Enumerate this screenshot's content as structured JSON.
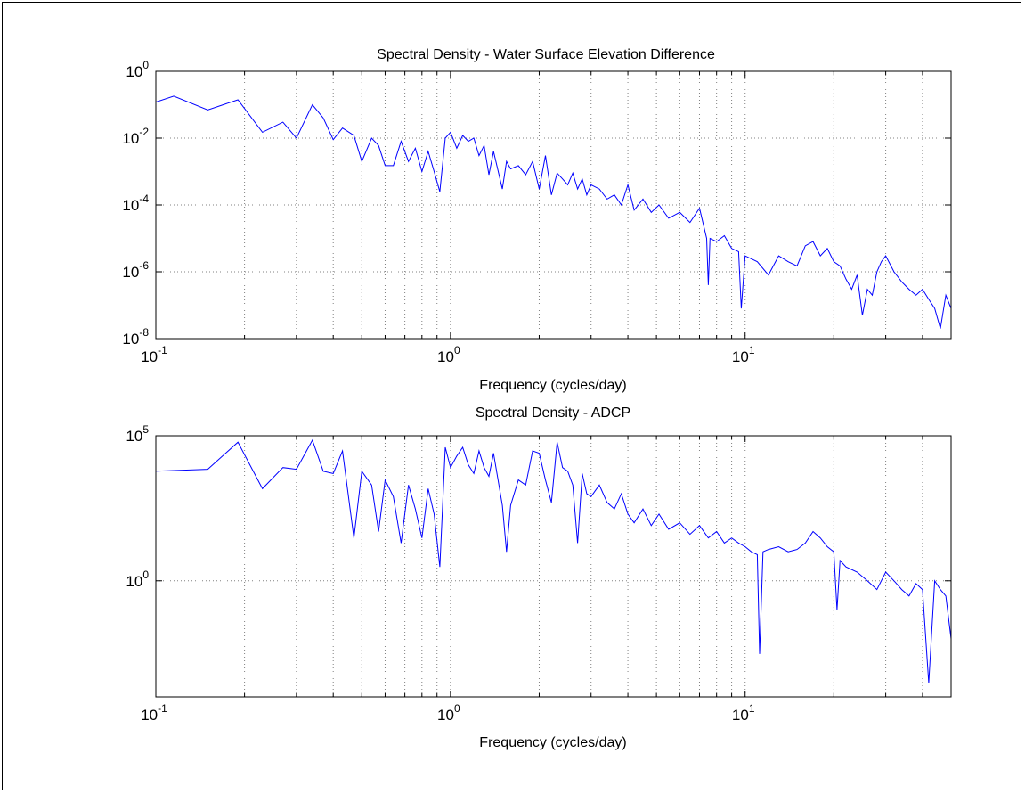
{
  "chart_data": [
    {
      "type": "line",
      "title": "Spectral Density - Water Surface Elevation Difference",
      "xlabel": "Frequency (cycles/day)",
      "ylabel": "",
      "x_scale": "log",
      "y_scale": "log",
      "xlim": [
        0.1,
        50
      ],
      "ylim": [
        1e-08,
        1
      ],
      "grid": true,
      "x_ticks": [
        {
          "value": 0.1,
          "base": "10",
          "exp": "-1"
        },
        {
          "value": 1,
          "base": "10",
          "exp": "0"
        },
        {
          "value": 10,
          "base": "10",
          "exp": "1"
        }
      ],
      "y_ticks": [
        {
          "value": 1,
          "base": "10",
          "exp": "0"
        },
        {
          "value": 0.01,
          "base": "10",
          "exp": "-2"
        },
        {
          "value": 0.0001,
          "base": "10",
          "exp": "-4"
        },
        {
          "value": 1e-06,
          "base": "10",
          "exp": "-6"
        },
        {
          "value": 1e-08,
          "base": "10",
          "exp": "-8"
        }
      ],
      "series": [
        {
          "color": "#0000ff",
          "x": [
            0.1,
            0.115,
            0.15,
            0.19,
            0.23,
            0.27,
            0.3,
            0.34,
            0.37,
            0.4,
            0.43,
            0.47,
            0.5,
            0.54,
            0.57,
            0.6,
            0.64,
            0.68,
            0.72,
            0.76,
            0.8,
            0.84,
            0.88,
            0.92,
            0.96,
            1.0,
            1.05,
            1.1,
            1.15,
            1.2,
            1.25,
            1.3,
            1.35,
            1.4,
            1.5,
            1.55,
            1.6,
            1.7,
            1.8,
            1.9,
            2.0,
            2.1,
            2.2,
            2.3,
            2.4,
            2.5,
            2.6,
            2.7,
            2.8,
            2.9,
            3.0,
            3.2,
            3.4,
            3.6,
            3.8,
            4.0,
            4.2,
            4.5,
            4.8,
            5.1,
            5.5,
            6.0,
            6.5,
            7.0,
            7.4,
            7.5,
            7.6,
            8.0,
            8.5,
            9.0,
            9.5,
            9.7,
            10,
            11,
            12,
            13,
            14,
            15,
            16,
            17,
            18,
            19,
            20,
            21,
            22,
            23,
            24,
            25,
            26,
            27,
            28,
            29,
            30,
            32,
            34,
            36,
            38,
            40,
            42,
            44,
            46,
            48,
            50
          ],
          "y": [
            0.12,
            0.18,
            0.07,
            0.14,
            0.015,
            0.03,
            0.01,
            0.1,
            0.04,
            0.009,
            0.02,
            0.012,
            0.002,
            0.01,
            0.006,
            0.0015,
            0.0015,
            0.008,
            0.002,
            0.005,
            0.001,
            0.004,
            0.001,
            0.00025,
            0.01,
            0.015,
            0.005,
            0.012,
            0.008,
            0.01,
            0.003,
            0.006,
            0.0008,
            0.004,
            0.0003,
            0.002,
            0.0012,
            0.0015,
            0.0008,
            0.002,
            0.0003,
            0.003,
            0.0002,
            0.0009,
            0.0006,
            0.0004,
            0.0009,
            0.0003,
            0.0006,
            0.0002,
            0.0004,
            0.0003,
            0.00015,
            0.0002,
            0.0001,
            0.0004,
            7e-05,
            0.00015,
            6e-05,
            0.0001,
            4e-05,
            6e-05,
            3e-05,
            8e-05,
            1e-05,
            4e-07,
            1e-05,
            8e-06,
            1.2e-05,
            5e-06,
            4e-06,
            8e-08,
            3e-06,
            2e-06,
            8e-07,
            3e-06,
            2e-06,
            1.5e-06,
            6e-06,
            8e-06,
            3e-06,
            5e-06,
            2e-06,
            1.5e-06,
            6e-07,
            3e-07,
            8e-07,
            5e-08,
            3e-07,
            2e-07,
            1e-06,
            2e-06,
            3e-06,
            1e-06,
            5e-07,
            3e-07,
            2e-07,
            3e-07,
            1.5e-07,
            8e-08,
            2e-08,
            2e-07,
            8e-08
          ]
        }
      ]
    },
    {
      "type": "line",
      "title": "Spectral Density - ADCP",
      "xlabel": "Frequency (cycles/day)",
      "ylabel": "",
      "x_scale": "log",
      "y_scale": "log",
      "xlim": [
        0.1,
        50
      ],
      "ylim": [
        0.0001,
        100000.0
      ],
      "grid": true,
      "x_ticks": [
        {
          "value": 0.1,
          "base": "10",
          "exp": "-1"
        },
        {
          "value": 1,
          "base": "10",
          "exp": "0"
        },
        {
          "value": 10,
          "base": "10",
          "exp": "1"
        }
      ],
      "y_ticks": [
        {
          "value": 100000,
          "base": "10",
          "exp": "5"
        },
        {
          "value": 1,
          "base": "10",
          "exp": "0"
        }
      ],
      "series": [
        {
          "color": "#0000ff",
          "x": [
            0.1,
            0.15,
            0.19,
            0.23,
            0.27,
            0.3,
            0.34,
            0.37,
            0.4,
            0.43,
            0.47,
            0.5,
            0.54,
            0.57,
            0.6,
            0.64,
            0.68,
            0.72,
            0.76,
            0.8,
            0.84,
            0.88,
            0.92,
            0.96,
            1.0,
            1.05,
            1.1,
            1.15,
            1.2,
            1.25,
            1.3,
            1.35,
            1.4,
            1.5,
            1.55,
            1.6,
            1.7,
            1.8,
            1.9,
            2.0,
            2.1,
            2.2,
            2.3,
            2.4,
            2.5,
            2.6,
            2.7,
            2.8,
            2.9,
            3.0,
            3.2,
            3.4,
            3.6,
            3.8,
            4.0,
            4.2,
            4.5,
            4.8,
            5.1,
            5.5,
            6.0,
            6.5,
            7.0,
            7.5,
            8.0,
            8.5,
            9.0,
            9.5,
            10,
            10.5,
            11,
            11.2,
            11.5,
            12,
            13,
            14,
            15,
            16,
            17,
            18,
            19,
            20,
            20.5,
            21,
            22,
            24,
            26,
            28,
            30,
            32,
            34,
            36,
            38,
            40,
            42,
            44,
            46,
            48,
            50
          ],
          "y": [
            6000,
            7000,
            60000,
            1500,
            8000,
            7000,
            70000,
            6000,
            5000,
            30000,
            30,
            6000,
            2000,
            50,
            3000,
            800,
            20,
            2000,
            300,
            30,
            1500,
            200,
            3,
            40000,
            8000,
            20000,
            40000,
            10000,
            5000,
            30000,
            8000,
            4000,
            25000,
            400,
            10,
            400,
            3000,
            2000,
            30000,
            25000,
            3000,
            500,
            60000,
            8000,
            6000,
            2000,
            20,
            5000,
            1000,
            800,
            2000,
            500,
            300,
            1000,
            200,
            100,
            300,
            80,
            200,
            60,
            100,
            40,
            80,
            30,
            50,
            20,
            30,
            20,
            15,
            10,
            8,
            0.003,
            10,
            12,
            15,
            10,
            12,
            20,
            50,
            30,
            15,
            10,
            0.1,
            5,
            3,
            2,
            1,
            0.5,
            2,
            1,
            0.5,
            0.3,
            0.8,
            0.5,
            0.0003,
            1,
            0.5,
            0.3,
            0.01
          ]
        }
      ]
    }
  ]
}
